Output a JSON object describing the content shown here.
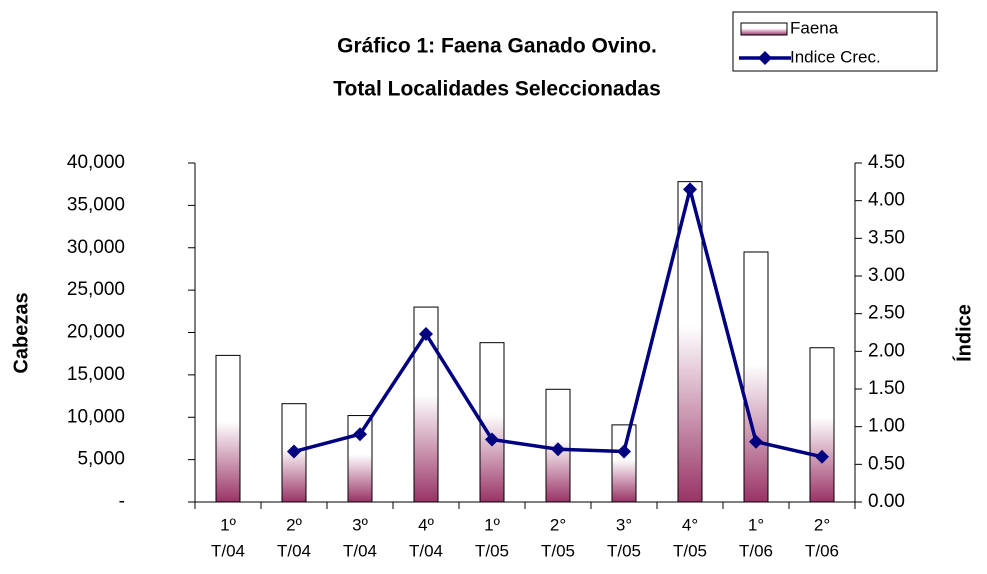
{
  "chart_data": {
    "type": "bar_line",
    "title": [
      "Gráfico 1: Faena Ganado Ovino.",
      "Total Localidades Seleccionadas"
    ],
    "y_label": "Cabezas",
    "y2_label": "Índice",
    "categories": [
      [
        "1º",
        "T/04"
      ],
      [
        "2º",
        "T/04"
      ],
      [
        "3º",
        "T/04"
      ],
      [
        "4º",
        "T/04"
      ],
      [
        "1º",
        "T/05"
      ],
      [
        "2°",
        "T/05"
      ],
      [
        "3°",
        "T/05"
      ],
      [
        "4°",
        "T/05"
      ],
      [
        "1°",
        "T/06"
      ],
      [
        "2°",
        "T/06"
      ]
    ],
    "series": [
      {
        "name": "Faena",
        "type": "bar",
        "color": "#993366",
        "values": [
          17300,
          11600,
          10200,
          23000,
          18800,
          13300,
          9100,
          37800,
          29500,
          18200
        ]
      },
      {
        "name": "Indice Crec.",
        "type": "line",
        "axis": "y2",
        "color": "#000080",
        "values": [
          null,
          0.67,
          0.9,
          2.23,
          0.83,
          0.7,
          0.67,
          4.15,
          0.8,
          0.6
        ]
      }
    ],
    "ylim": [
      0,
      40000
    ],
    "yticks": [
      {
        "value": 0,
        "label": "-"
      },
      {
        "value": 5000,
        "label": "5,000"
      },
      {
        "value": 10000,
        "label": "10,000"
      },
      {
        "value": 15000,
        "label": "15,000"
      },
      {
        "value": 20000,
        "label": "20,000"
      },
      {
        "value": 25000,
        "label": "25,000"
      },
      {
        "value": 30000,
        "label": "30,000"
      },
      {
        "value": 35000,
        "label": "35,000"
      },
      {
        "value": 40000,
        "label": "40,000"
      }
    ],
    "y2lim": [
      0,
      4.5
    ],
    "y2ticks": [
      {
        "value": 0,
        "label": "0.00"
      },
      {
        "value": 0.5,
        "label": "0.50"
      },
      {
        "value": 1,
        "label": "1.00"
      },
      {
        "value": 1.5,
        "label": "1.50"
      },
      {
        "value": 2,
        "label": "2.00"
      },
      {
        "value": 2.5,
        "label": "2.50"
      },
      {
        "value": 3,
        "label": "3.00"
      },
      {
        "value": 3.5,
        "label": "3.50"
      },
      {
        "value": 4,
        "label": "4.00"
      },
      {
        "value": 4.5,
        "label": "4.50"
      }
    ],
    "grid": false,
    "legend": "top-right"
  }
}
